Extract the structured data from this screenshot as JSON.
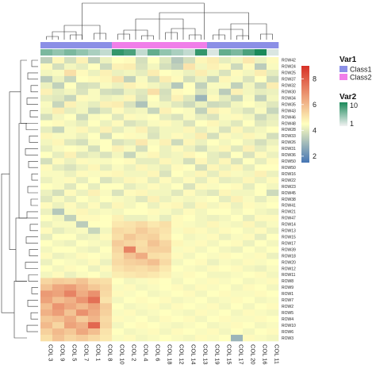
{
  "chart_data": {
    "type": "heatmap",
    "title": "",
    "columns": [
      "COL 3",
      "COL 9",
      "COL 5",
      "COL 7",
      "COL 1",
      "COL 8",
      "COL 10",
      "COL 2",
      "COL 4",
      "COL 6",
      "COL 18",
      "COL 12",
      "COL 14",
      "COL 13",
      "COL 19",
      "COL 15",
      "COL 17",
      "COL 20",
      "COL 16",
      "COL 11"
    ],
    "rows": [
      "ROW42",
      "ROW24",
      "ROW25",
      "ROW37",
      "ROW32",
      "ROW30",
      "ROW34",
      "ROW35",
      "ROW43",
      "ROW46",
      "ROW48",
      "ROW28",
      "ROW33",
      "ROW26",
      "ROW31",
      "ROW36",
      "ROW50",
      "ROW50",
      "ROW16",
      "ROW22",
      "ROW23",
      "ROW45",
      "ROW38",
      "ROW41",
      "ROW21",
      "ROW47",
      "ROW14",
      "ROW13",
      "ROW15",
      "ROW17",
      "ROW39",
      "ROW18",
      "ROW20",
      "ROW12",
      "ROW11",
      "ROW8",
      "ROW9",
      "ROW1",
      "ROW7",
      "ROW2",
      "ROW5",
      "ROW4",
      "ROW10",
      "ROW6",
      "ROW3"
    ],
    "values": [
      [
        3.5,
        4.7,
        3.8,
        4.8,
        3.5,
        4.2,
        4.5,
        4.6,
        3.8,
        4.5,
        4.0,
        3.3,
        3.8,
        4.7,
        4.9,
        4.1,
        4.3,
        5.0,
        4.2,
        4.6
      ],
      [
        4.6,
        3.8,
        4.3,
        4.1,
        4.5,
        3.7,
        4.8,
        4.9,
        3.9,
        4.3,
        3.8,
        3.5,
        5.1,
        4.3,
        4.8,
        4.6,
        3.7,
        4.6,
        3.4,
        4.4
      ],
      [
        4.3,
        4.4,
        5.2,
        4.6,
        4.2,
        4.8,
        4.2,
        4.3,
        4.1,
        4.9,
        4.5,
        4.4,
        4.2,
        4.9,
        4.3,
        3.9,
        4.6,
        4.3,
        4.9,
        4.1
      ],
      [
        3.4,
        4.2,
        3.6,
        4.5,
        4.6,
        4.7,
        5.1,
        3.5,
        4.4,
        3.8,
        4.9,
        4.6,
        3.8,
        4.2,
        3.6,
        4.7,
        4.4,
        3.9,
        4.5,
        3.7
      ],
      [
        4.2,
        3.5,
        4.5,
        3.8,
        3.9,
        4.4,
        4.2,
        4.8,
        4.6,
        4.3,
        4.1,
        3.3,
        4.5,
        3.5,
        4.4,
        4.4,
        3.5,
        4.3,
        3.7,
        4.9
      ],
      [
        4.8,
        4.1,
        4.3,
        3.9,
        4.4,
        3.8,
        3.7,
        4.2,
        4.0,
        5.2,
        3.8,
        4.6,
        4.5,
        3.9,
        4.3,
        3.4,
        4.8,
        4.3,
        4.1,
        4.2
      ],
      [
        4.1,
        4.0,
        3.6,
        4.6,
        4.4,
        4.2,
        4.3,
        4.7,
        3.9,
        4.5,
        3.9,
        4.8,
        4.0,
        2.9,
        4.6,
        4.1,
        3.6,
        4.4,
        3.5,
        4.3
      ],
      [
        4.4,
        3.6,
        4.8,
        4.3,
        4.1,
        4.8,
        4.9,
        3.9,
        3.2,
        4.4,
        4.3,
        4.0,
        3.7,
        4.2,
        3.7,
        3.8,
        4.3,
        4.5,
        4.3,
        4.0
      ],
      [
        4.3,
        4.9,
        4.1,
        4.3,
        3.6,
        4.0,
        4.6,
        4.2,
        4.3,
        3.6,
        4.8,
        4.5,
        4.4,
        3.5,
        4.8,
        4.6,
        4.2,
        3.9,
        4.4,
        3.6
      ],
      [
        3.8,
        4.3,
        4.5,
        3.7,
        4.4,
        4.5,
        4.0,
        4.6,
        4.4,
        4.5,
        4.1,
        3.9,
        4.4,
        4.1,
        3.9,
        4.4,
        4.6,
        4.3,
        3.7,
        4.1
      ],
      [
        4.5,
        4.6,
        4.3,
        4.1,
        4.5,
        4.2,
        4.6,
        3.9,
        4.1,
        4.4,
        4.6,
        4.3,
        3.9,
        4.5,
        4.7,
        4.3,
        4.0,
        4.5,
        4.0,
        4.2
      ],
      [
        4.1,
        3.6,
        4.4,
        4.7,
        4.2,
        4.8,
        4.1,
        4.4,
        4.8,
        4.0,
        4.3,
        4.3,
        4.7,
        4.1,
        4.4,
        3.9,
        4.7,
        4.1,
        4.3,
        4.5
      ],
      [
        4.7,
        4.4,
        4.4,
        4.2,
        4.5,
        3.8,
        4.5,
        4.6,
        4.4,
        3.9,
        4.3,
        4.6,
        4.3,
        4.9,
        3.8,
        4.6,
        4.3,
        4.7,
        4.4,
        3.8
      ],
      [
        4.3,
        4.7,
        4.0,
        3.8,
        4.4,
        4.5,
        3.9,
        4.1,
        5.0,
        4.4,
        4.8,
        3.7,
        4.7,
        4.2,
        4.5,
        4.3,
        4.5,
        4.2,
        3.8,
        4.2
      ],
      [
        4.1,
        4.4,
        4.5,
        4.4,
        3.8,
        4.5,
        4.8,
        4.4,
        3.8,
        4.5,
        4.2,
        4.6,
        4.2,
        3.8,
        4.3,
        4.7,
        4.0,
        4.8,
        4.1,
        4.4
      ],
      [
        4.5,
        4.1,
        4.8,
        4.0,
        4.2,
        3.9,
        4.3,
        3.6,
        4.4,
        4.7,
        4.2,
        4.3,
        4.7,
        4.5,
        4.1,
        3.9,
        4.5,
        3.9,
        4.6,
        4.2
      ],
      [
        3.8,
        4.6,
        4.2,
        4.6,
        4.4,
        4.4,
        4.5,
        4.6,
        4.1,
        4.1,
        4.7,
        4.3,
        3.8,
        4.7,
        4.1,
        4.7,
        3.9,
        4.5,
        4.1,
        4.6
      ],
      [
        4.6,
        4.1,
        3.9,
        4.2,
        4.7,
        4.1,
        4.4,
        4.2,
        4.7,
        4.3,
        4.1,
        4.6,
        4.5,
        3.8,
        4.7,
        4.2,
        4.7,
        4.1,
        4.5,
        4.5
      ],
      [
        4.4,
        4.4,
        4.2,
        4.6,
        4.4,
        4.6,
        4.7,
        4.3,
        4.3,
        4.7,
        3.9,
        4.5,
        4.3,
        4.7,
        4.1,
        4.7,
        4.4,
        4.3,
        4.8,
        4.2
      ],
      [
        4.2,
        4.4,
        4.6,
        4.1,
        4.5,
        3.9,
        4.2,
        4.7,
        4.6,
        4.1,
        4.6,
        4.2,
        4.6,
        4.1,
        4.6,
        4.1,
        4.2,
        4.7,
        4.2,
        4.6
      ],
      [
        4.5,
        4.4,
        4.0,
        4.5,
        4.1,
        4.5,
        4.5,
        4.1,
        4.3,
        4.6,
        4.3,
        4.5,
        3.9,
        4.6,
        4.4,
        4.5,
        4.6,
        4.1,
        4.5,
        4.3
      ],
      [
        4.2,
        3.8,
        4.6,
        4.2,
        4.8,
        4.4,
        3.9,
        4.6,
        4.7,
        4.3,
        4.3,
        4.0,
        4.6,
        4.2,
        4.0,
        4.7,
        4.3,
        4.3,
        4.5,
        3.7
      ],
      [
        4.0,
        4.4,
        4.1,
        4.5,
        4.3,
        4.5,
        4.4,
        4.3,
        4.0,
        4.8,
        4.2,
        4.4,
        4.3,
        4.4,
        4.5,
        4.1,
        4.8,
        4.4,
        4.1,
        4.4
      ],
      [
        4.6,
        4.2,
        4.6,
        4.2,
        4.6,
        4.1,
        4.7,
        4.3,
        4.5,
        4.2,
        4.6,
        4.7,
        4.1,
        4.7,
        4.3,
        4.6,
        4.2,
        4.6,
        4.4,
        4.5
      ],
      [
        4.2,
        3.3,
        4.4,
        4.7,
        4.3,
        4.4,
        4.3,
        4.5,
        4.5,
        4.6,
        4.4,
        4.2,
        4.6,
        4.3,
        4.5,
        4.5,
        4.3,
        4.5,
        4.3,
        4.2
      ],
      [
        4.5,
        4.3,
        3.5,
        4.6,
        4.6,
        4.5,
        4.8,
        4.2,
        4.2,
        4.4,
        4.1,
        4.6,
        4.5,
        4.3,
        4.2,
        4.3,
        4.5,
        4.1,
        4.6,
        4.6
      ],
      [
        4.2,
        4.4,
        4.4,
        3.4,
        4.5,
        4.5,
        5.0,
        5.1,
        5.3,
        5.0,
        5.2,
        4.6,
        4.4,
        4.3,
        4.7,
        4.4,
        4.3,
        4.7,
        4.2,
        4.4
      ],
      [
        4.6,
        4.1,
        4.3,
        4.4,
        3.6,
        4.3,
        5.3,
        5.2,
        5.6,
        5.3,
        5.1,
        4.4,
        4.7,
        4.6,
        4.3,
        4.6,
        4.5,
        4.3,
        4.6,
        4.2
      ],
      [
        4.1,
        4.5,
        4.5,
        4.2,
        4.3,
        4.6,
        5.2,
        5.7,
        5.4,
        5.5,
        5.0,
        4.5,
        4.3,
        4.4,
        4.6,
        4.2,
        4.4,
        4.6,
        4.1,
        4.5
      ],
      [
        4.5,
        4.3,
        4.2,
        4.5,
        4.4,
        4.3,
        5.6,
        5.4,
        5.2,
        5.8,
        5.4,
        4.7,
        4.4,
        4.6,
        4.3,
        4.5,
        4.6,
        4.2,
        4.5,
        4.3
      ],
      [
        4.3,
        4.5,
        4.5,
        4.3,
        4.2,
        4.5,
        5.4,
        7.2,
        5.3,
        5.5,
        5.5,
        4.4,
        4.6,
        4.3,
        4.5,
        4.3,
        4.2,
        4.5,
        4.3,
        4.5
      ],
      [
        4.6,
        4.2,
        4.3,
        4.6,
        4.5,
        4.4,
        5.2,
        5.8,
        6.3,
        5.2,
        5.1,
        4.6,
        4.3,
        4.5,
        4.4,
        4.6,
        4.5,
        4.4,
        4.6,
        4.2
      ],
      [
        4.2,
        4.5,
        4.4,
        4.3,
        4.6,
        4.2,
        5.3,
        5.5,
        5.6,
        5.9,
        5.3,
        4.3,
        4.5,
        4.6,
        4.2,
        4.4,
        4.3,
        4.6,
        4.4,
        4.5
      ],
      [
        4.5,
        4.3,
        4.6,
        4.5,
        4.2,
        4.6,
        5.1,
        5.3,
        5.2,
        5.4,
        5.0,
        4.5,
        4.4,
        4.3,
        4.6,
        4.5,
        4.6,
        4.3,
        4.2,
        4.4
      ],
      [
        4.3,
        4.6,
        4.2,
        4.4,
        4.5,
        4.3,
        4.9,
        5.0,
        5.1,
        5.0,
        4.8,
        4.4,
        4.6,
        4.5,
        4.3,
        4.3,
        4.4,
        4.5,
        4.6,
        4.3
      ],
      [
        5.4,
        5.6,
        5.5,
        5.8,
        5.3,
        5.2,
        4.5,
        4.3,
        4.4,
        4.6,
        4.5,
        4.3,
        4.5,
        4.4,
        4.6,
        4.4,
        4.5,
        4.3,
        4.4,
        4.6
      ],
      [
        5.8,
        6.4,
        6.6,
        6.1,
        5.7,
        5.4,
        4.4,
        4.6,
        4.3,
        4.4,
        4.5,
        4.6,
        4.3,
        4.6,
        4.4,
        4.5,
        4.3,
        4.6,
        4.5,
        4.3
      ],
      [
        6.7,
        6.5,
        7.2,
        6.3,
        6.9,
        5.3,
        4.6,
        4.4,
        4.5,
        4.3,
        4.4,
        4.5,
        4.6,
        4.3,
        4.5,
        4.6,
        4.4,
        4.4,
        4.6,
        4.5
      ],
      [
        6.5,
        5.9,
        6.2,
        6.8,
        7.6,
        5.1,
        4.3,
        4.5,
        4.6,
        4.5,
        4.6,
        4.3,
        4.4,
        4.5,
        4.3,
        4.4,
        4.6,
        4.5,
        4.3,
        4.4
      ],
      [
        5.9,
        6.8,
        6.4,
        6.0,
        6.5,
        5.6,
        4.5,
        4.3,
        4.4,
        4.6,
        4.3,
        4.6,
        4.5,
        4.4,
        4.6,
        4.3,
        4.5,
        4.3,
        4.5,
        4.6
      ],
      [
        6.2,
        6.6,
        5.8,
        6.9,
        6.3,
        5.5,
        4.4,
        4.6,
        4.3,
        4.4,
        4.5,
        4.4,
        4.3,
        4.6,
        4.4,
        4.5,
        4.3,
        4.6,
        4.4,
        4.3
      ],
      [
        5.7,
        5.9,
        6.3,
        5.6,
        6.1,
        5.3,
        4.6,
        4.4,
        4.5,
        4.3,
        4.6,
        4.5,
        4.6,
        4.3,
        4.5,
        4.6,
        4.4,
        4.4,
        4.6,
        4.5
      ],
      [
        6.0,
        5.4,
        6.5,
        6.2,
        7.8,
        5.4,
        4.3,
        4.5,
        4.6,
        4.5,
        4.4,
        4.3,
        4.4,
        4.5,
        4.3,
        4.4,
        4.6,
        4.5,
        4.3,
        4.4
      ],
      [
        5.5,
        6.0,
        5.7,
        6.4,
        5.9,
        5.1,
        4.5,
        4.3,
        4.4,
        4.6,
        4.3,
        4.6,
        4.5,
        4.4,
        4.6,
        4.3,
        4.5,
        4.3,
        4.5,
        4.6
      ],
      [
        5.2,
        5.8,
        5.4,
        5.6,
        5.3,
        5.0,
        4.4,
        4.6,
        4.3,
        4.4,
        4.5,
        4.4,
        4.3,
        4.6,
        4.4,
        4.5,
        2.9,
        4.6,
        4.4,
        4.3
      ]
    ],
    "color_scale": {
      "min": 1.5,
      "mid": 4.5,
      "max": 9.0,
      "low_color": "#4575b4",
      "mid_color": "#ffffbf",
      "high_color": "#d73027",
      "ticks": [
        "8",
        "6",
        "4",
        "2"
      ]
    },
    "col_annotations": {
      "Var1": [
        "Class1",
        "Class1",
        "Class1",
        "Class1",
        "Class1",
        "Class1",
        "Class2",
        "Class2",
        "Class2",
        "Class2",
        "Class2",
        "Class2",
        "Class2",
        "Class2",
        "Class1",
        "Class1",
        "Class1",
        "Class1",
        "Class1",
        "Class1"
      ],
      "Var2": [
        6,
        5,
        6,
        5,
        4,
        3,
        9,
        8,
        3,
        7,
        5,
        4,
        3,
        9,
        2,
        7,
        6,
        8,
        10,
        2
      ]
    },
    "legend": {
      "var1_title": "Var1",
      "var1_items": [
        {
          "label": "Class1",
          "color": "#8b8fe6"
        },
        {
          "label": "Class2",
          "color": "#f07ee9"
        }
      ],
      "var2_title": "Var2",
      "var2_max_label": "10",
      "var2_min_label": "1",
      "var2_low_color": "#f2f2f2",
      "var2_high_color": "#1b8a5a"
    },
    "dendrograms": {
      "row": "shown on left",
      "column": "shown on top"
    }
  }
}
